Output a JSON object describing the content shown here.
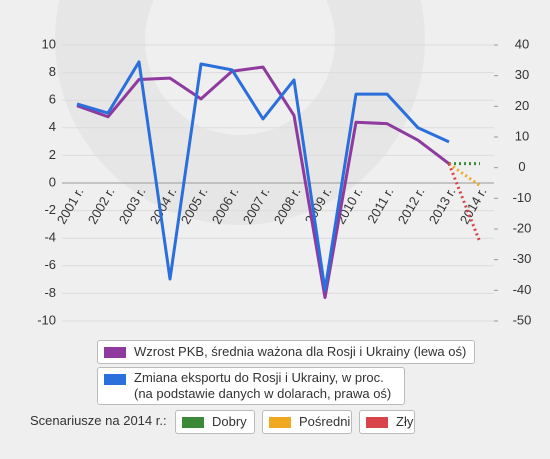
{
  "chart_data": {
    "type": "line",
    "categories": [
      "2001 r.",
      "2002 r.",
      "2003 r.",
      "2004 r.",
      "2005 r.",
      "2006 r.",
      "2007 r.",
      "2008 r.",
      "2009 r.",
      "2010 r.",
      "2011 r.",
      "2012 r.",
      "2013 r.",
      "2014 r."
    ],
    "series": [
      {
        "name": "Wzrost PKB, średnia ważona dla Rosji i Ukrainy (lewa oś)",
        "color": "#8e3a9e",
        "values": [
          5.6,
          4.8,
          7.5,
          7.6,
          6.1,
          8.1,
          8.4,
          4.9,
          -8.3,
          4.4,
          4.3,
          3.1,
          1.4,
          null
        ]
      },
      {
        "name": "Zmiana eksportu do Rosji i Ukrainy, w proc.\n(na podstawie danych w dolarach, prawa oś)",
        "color": "#2a6fdb",
        "axis": "y2",
        "values": [
          20.8,
          17.8,
          34.5,
          -36.3,
          33.8,
          31.9,
          15.9,
          28.6,
          -39.9,
          24,
          24,
          13,
          8.4,
          null
        ]
      },
      {
        "name": "Dobry",
        "color": "#3a8a3a",
        "values": [
          null,
          null,
          null,
          null,
          null,
          null,
          null,
          null,
          null,
          null,
          null,
          null,
          1.4,
          1.4
        ]
      },
      {
        "name": "Pośredni",
        "color": "#f0a820",
        "values": [
          null,
          null,
          null,
          null,
          null,
          null,
          null,
          null,
          null,
          null,
          null,
          null,
          1.4,
          -0.2
        ]
      },
      {
        "name": "Zły",
        "color": "#d9434a",
        "values": [
          null,
          null,
          null,
          null,
          null,
          null,
          null,
          null,
          null,
          null,
          null,
          null,
          1.4,
          -4.3
        ]
      }
    ],
    "scenario_label": "Scenariusze na 2014 r.:",
    "ylim": [
      -10,
      10
    ],
    "yticks": [
      -10,
      -8,
      -6,
      -4,
      -2,
      0,
      2,
      4,
      6,
      8,
      10
    ],
    "y2lim": [
      -50,
      40
    ],
    "y2ticks": [
      -50,
      -40,
      -30,
      -20,
      -10,
      0,
      10,
      20,
      30,
      40
    ],
    "grid": true
  }
}
